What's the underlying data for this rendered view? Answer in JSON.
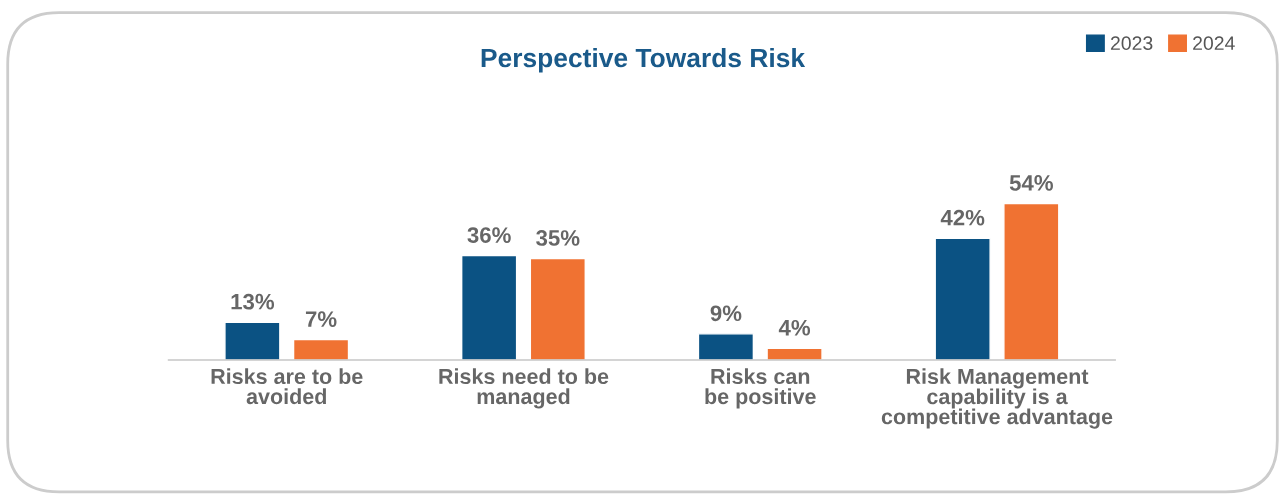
{
  "chart_data": {
    "type": "bar",
    "title": "Perspective Towards Risk",
    "categories": [
      "Risks are to be\navoided",
      "Risks need to be\nmanaged",
      "Risks can\nbe positive",
      "Risk Management\ncapability is a\ncompetitive advantage"
    ],
    "series": [
      {
        "name": "2023",
        "color": "#0b5283",
        "values": [
          13,
          36,
          9,
          42
        ],
        "value_labels": [
          "13%",
          "36%",
          "9%",
          "42%"
        ]
      },
      {
        "name": "2024",
        "color": "#f07232",
        "values": [
          7,
          35,
          4,
          54
        ],
        "value_labels": [
          "7%",
          "35%",
          "4%",
          "54%"
        ]
      }
    ],
    "legend": "top right",
    "grid": false
  }
}
